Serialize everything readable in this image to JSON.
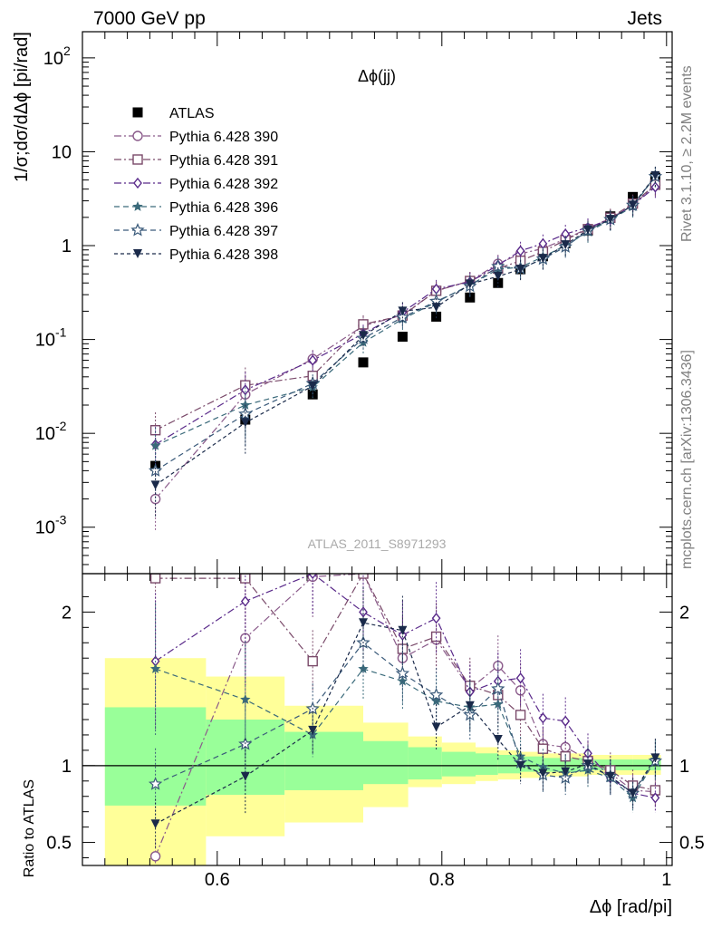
{
  "header": {
    "left": "7000 GeV pp",
    "right": "Jets"
  },
  "side_text": {
    "rivet": "Rivet 3.1.10, ≥ 2.2M events",
    "mcplots": "mcplots.cern.ch [arXiv:1306.3436]"
  },
  "analysis_label": "ATLAS_2011_S8971293",
  "chart_data": [
    {
      "type": "scatter",
      "title": "Δϕ(jj)",
      "xlabel": "",
      "ylabel": "1/σ;dσ/dΔϕ [pi/rad]",
      "yscale": "log",
      "ylim": [
        0.00032,
        190
      ],
      "xlim": [
        0.48,
        1.005
      ],
      "yticks": [
        {
          "v": 0.001,
          "label": "10",
          "exp": "-3"
        },
        {
          "v": 0.01,
          "label": "10",
          "exp": "-2"
        },
        {
          "v": 0.1,
          "label": "10",
          "exp": "-1"
        },
        {
          "v": 1,
          "label": "1",
          "exp": ""
        },
        {
          "v": 10,
          "label": "10",
          "exp": ""
        },
        {
          "v": 100,
          "label": "10",
          "exp": "2"
        }
      ],
      "legend_placement": "top-left",
      "series": [
        {
          "name": "ATLAS",
          "color": "#000000",
          "marker": "filled-square",
          "dash": "none",
          "x": [
            0.545,
            0.625,
            0.685,
            0.73,
            0.765,
            0.795,
            0.825,
            0.85,
            0.87,
            0.89,
            0.91,
            0.93,
            0.95,
            0.97,
            0.99
          ],
          "y": [
            0.0045,
            0.014,
            0.026,
            0.057,
            0.107,
            0.175,
            0.28,
            0.4,
            0.56,
            0.77,
            1.06,
            1.45,
            2.05,
            3.3,
            5.3
          ]
        },
        {
          "name": "Pythia 6.428 390",
          "color": "#8a5a8a",
          "marker": "open-circle",
          "dash": "8,3,2,3",
          "x": [
            0.545,
            0.625,
            0.685,
            0.73,
            0.765,
            0.795,
            0.825,
            0.85,
            0.87,
            0.89,
            0.91,
            0.93,
            0.95,
            0.97,
            0.99
          ],
          "y": [
            0.002,
            0.026,
            0.062,
            0.14,
            0.182,
            0.33,
            0.42,
            0.64,
            0.82,
            0.93,
            1.18,
            1.52,
            1.95,
            2.7,
            4.4
          ]
        },
        {
          "name": "Pythia 6.428 391",
          "color": "#7a4a6a",
          "marker": "open-square",
          "dash": "8,3,2,3",
          "x": [
            0.545,
            0.625,
            0.685,
            0.73,
            0.765,
            0.795,
            0.825,
            0.85,
            0.87,
            0.89,
            0.91,
            0.93,
            0.95,
            0.97,
            0.99
          ],
          "y": [
            0.0108,
            0.0325,
            0.041,
            0.145,
            0.18,
            0.33,
            0.42,
            0.57,
            0.69,
            0.86,
            1.15,
            1.5,
            1.98,
            2.8,
            4.45
          ]
        },
        {
          "name": "Pythia 6.428 392",
          "color": "#5a2a8a",
          "marker": "open-diamond",
          "dash": "8,3,2,3",
          "x": [
            0.545,
            0.625,
            0.685,
            0.73,
            0.765,
            0.795,
            0.825,
            0.85,
            0.87,
            0.89,
            0.91,
            0.93,
            0.95,
            0.97,
            0.99
          ],
          "y": [
            0.0076,
            0.029,
            0.06,
            0.115,
            0.195,
            0.345,
            0.41,
            0.62,
            0.88,
            1.05,
            1.33,
            1.56,
            1.9,
            2.7,
            4.2
          ]
        },
        {
          "name": "Pythia 6.428 396",
          "color": "#3a6a7a",
          "marker": "filled-star",
          "dash": "6,4",
          "x": [
            0.545,
            0.625,
            0.685,
            0.73,
            0.765,
            0.795,
            0.825,
            0.85,
            0.87,
            0.89,
            0.91,
            0.93,
            0.95,
            0.97,
            0.99
          ],
          "y": [
            0.0074,
            0.02,
            0.031,
            0.093,
            0.165,
            0.25,
            0.38,
            0.56,
            0.59,
            0.76,
            1.0,
            1.4,
            1.88,
            2.6,
            5.5
          ]
        },
        {
          "name": "Pythia 6.428 397",
          "color": "#3a5a7a",
          "marker": "open-star",
          "dash": "6,4",
          "x": [
            0.545,
            0.625,
            0.685,
            0.73,
            0.765,
            0.795,
            0.825,
            0.85,
            0.87,
            0.89,
            0.91,
            0.93,
            0.95,
            0.97,
            0.99
          ],
          "y": [
            0.004,
            0.016,
            0.034,
            0.103,
            0.172,
            0.255,
            0.37,
            0.6,
            0.57,
            0.72,
            0.97,
            1.45,
            1.9,
            2.7,
            5.45
          ]
        },
        {
          "name": "Pythia 6.428 398",
          "color": "#1a2a4a",
          "marker": "filled-tri-down",
          "dash": "4,3",
          "x": [
            0.545,
            0.625,
            0.685,
            0.73,
            0.765,
            0.795,
            0.825,
            0.85,
            0.87,
            0.89,
            0.91,
            0.93,
            0.95,
            0.97,
            0.99
          ],
          "y": [
            0.0028,
            0.013,
            0.032,
            0.11,
            0.2,
            0.22,
            0.39,
            0.47,
            0.56,
            0.73,
            1.02,
            1.47,
            1.9,
            2.7,
            5.55
          ]
        }
      ]
    },
    {
      "type": "scatter",
      "title": "",
      "xlabel": "Δϕ [rad/pi]",
      "ylabel": "Ratio to ATLAS",
      "ylim": [
        0.35,
        2.25
      ],
      "xlim": [
        0.48,
        1.005
      ],
      "yticks": [
        0.5,
        1,
        2
      ],
      "xticks": [
        0.6,
        0.8,
        1
      ],
      "reference_line": 1,
      "bands": {
        "x_edges": [
          0.5,
          0.59,
          0.66,
          0.73,
          0.77,
          0.8,
          0.83,
          0.85,
          0.87,
          0.89,
          0.91,
          0.93,
          0.95,
          0.97,
          0.995
        ],
        "yellow_low": [
          0.35,
          0.54,
          0.63,
          0.73,
          0.86,
          0.88,
          0.9,
          0.91,
          0.92,
          0.93,
          0.93,
          0.94,
          0.94,
          0.94
        ],
        "yellow_high": [
          1.7,
          1.58,
          1.39,
          1.28,
          1.19,
          1.15,
          1.12,
          1.1,
          1.09,
          1.08,
          1.08,
          1.07,
          1.07,
          1.07
        ],
        "green_low": [
          0.74,
          0.81,
          0.84,
          0.88,
          0.91,
          0.93,
          0.94,
          0.95,
          0.96,
          0.96,
          0.96,
          0.97,
          0.97,
          0.97
        ],
        "green_high": [
          1.38,
          1.3,
          1.22,
          1.16,
          1.12,
          1.09,
          1.08,
          1.07,
          1.06,
          1.05,
          1.05,
          1.04,
          1.04,
          1.04
        ]
      },
      "series": [
        {
          "name": "Pythia 6.428 390",
          "color": "#8a5a8a",
          "marker": "open-circle",
          "dash": "8,3,2,3",
          "x": [
            0.545,
            0.625,
            0.685,
            0.73,
            0.765,
            0.795,
            0.825,
            0.85,
            0.87,
            0.89,
            0.91,
            0.93,
            0.95,
            0.97,
            0.99
          ],
          "y": [
            0.41,
            1.83,
            2.23,
            2.25,
            1.7,
            1.82,
            1.5,
            1.65,
            1.49,
            1.14,
            1.12,
            1.04,
            0.95,
            0.84,
            0.83
          ]
        },
        {
          "name": "Pythia 6.428 391",
          "color": "#7a4a6a",
          "marker": "open-square",
          "dash": "8,3,2,3",
          "x": [
            0.545,
            0.625,
            0.685,
            0.73,
            0.765,
            0.795,
            0.825,
            0.85,
            0.87,
            0.89,
            0.91,
            0.93,
            0.95,
            0.97,
            0.99
          ],
          "y": [
            2.22,
            2.22,
            1.68,
            2.25,
            1.76,
            1.84,
            1.52,
            1.46,
            1.33,
            1.11,
            1.06,
            1.03,
            0.97,
            0.87,
            0.84
          ]
        },
        {
          "name": "Pythia 6.428 392",
          "color": "#5a2a8a",
          "marker": "open-diamond",
          "dash": "8,3,2,3",
          "x": [
            0.545,
            0.625,
            0.685,
            0.73,
            0.765,
            0.795,
            0.825,
            0.85,
            0.87,
            0.89,
            0.91,
            0.93,
            0.95,
            0.97,
            0.99
          ],
          "y": [
            1.68,
            2.07,
            2.25,
            2.0,
            1.85,
            1.96,
            1.48,
            1.55,
            1.57,
            1.31,
            1.29,
            1.08,
            0.92,
            0.82,
            0.79
          ]
        },
        {
          "name": "Pythia 6.428 396",
          "color": "#3a6a7a",
          "marker": "filled-star",
          "dash": "6,4",
          "x": [
            0.545,
            0.625,
            0.685,
            0.73,
            0.765,
            0.795,
            0.825,
            0.85,
            0.87,
            0.89,
            0.91,
            0.93,
            0.95,
            0.97,
            0.99
          ],
          "y": [
            1.63,
            1.43,
            1.2,
            1.63,
            1.55,
            1.42,
            1.38,
            1.4,
            1.06,
            0.99,
            0.95,
            0.97,
            0.92,
            0.79,
            1.04
          ]
        },
        {
          "name": "Pythia 6.428 397",
          "color": "#3a5a7a",
          "marker": "open-star",
          "dash": "6,4",
          "x": [
            0.545,
            0.625,
            0.685,
            0.73,
            0.765,
            0.795,
            0.825,
            0.85,
            0.87,
            0.89,
            0.91,
            0.93,
            0.95,
            0.97,
            0.99
          ],
          "y": [
            0.88,
            1.14,
            1.37,
            1.8,
            1.6,
            1.46,
            1.33,
            1.5,
            1.02,
            0.94,
            0.92,
            1.0,
            0.93,
            0.82,
            1.03
          ]
        },
        {
          "name": "Pythia 6.428 398",
          "color": "#1a2a4a",
          "marker": "filled-tri-down",
          "dash": "4,3",
          "x": [
            0.545,
            0.625,
            0.685,
            0.73,
            0.765,
            0.795,
            0.825,
            0.85,
            0.87,
            0.89,
            0.91,
            0.93,
            0.95,
            0.97,
            0.99
          ],
          "y": [
            0.62,
            0.93,
            1.23,
            1.93,
            1.88,
            1.25,
            1.39,
            1.17,
            1.0,
            0.95,
            0.96,
            1.01,
            0.93,
            0.82,
            1.05
          ]
        }
      ]
    }
  ]
}
